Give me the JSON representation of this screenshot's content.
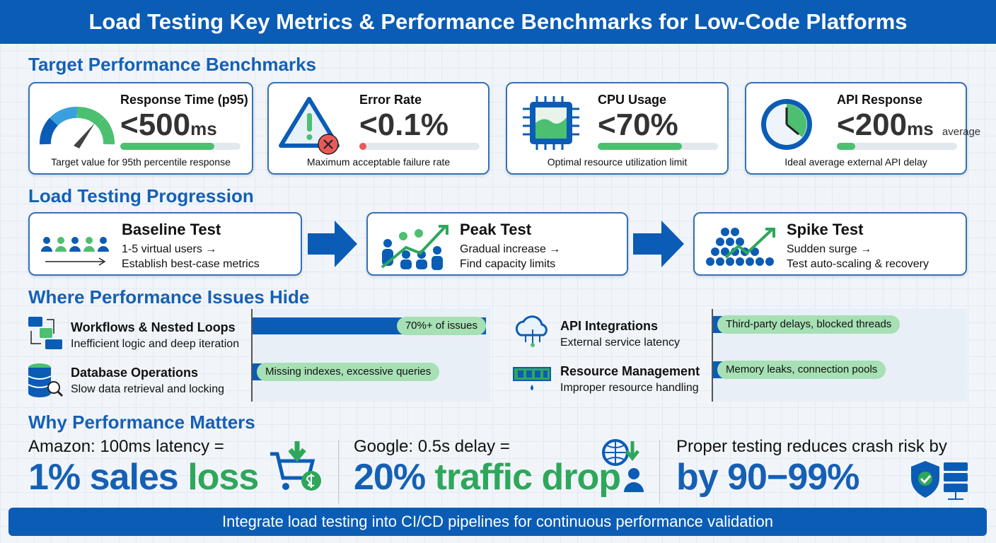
{
  "title": "Load Testing Key Metrics & Performance Benchmarks for Low-Code Platforms",
  "sections": {
    "benchmarks": "Target Performance Benchmarks",
    "progression": "Load Testing Progression",
    "issues": "Where Performance Issues Hide",
    "why": "Why Performance Matters"
  },
  "benchmarks": [
    {
      "label": "Response Time (p95)",
      "value": "<500",
      "unit": "ms",
      "note": "",
      "desc": "Target value for 95th percentile response",
      "fill_pct": 78,
      "icon": "speedometer-icon"
    },
    {
      "label": "Error Rate",
      "value": "<0.1%",
      "unit": "",
      "note": "",
      "desc": "Maximum acceptable failure rate",
      "fill_pct": 2,
      "icon": "warning-icon"
    },
    {
      "label": "CPU Usage",
      "value": "<70%",
      "unit": "",
      "note": "",
      "desc": "Optimal resource utilization limit",
      "fill_pct": 70,
      "icon": "cpu-icon"
    },
    {
      "label": "API Response",
      "value": "<200",
      "unit": "ms",
      "note": "average",
      "desc": "Ideal average external API delay",
      "fill_pct": 15,
      "icon": "clock-icon"
    }
  ],
  "progression": [
    {
      "title": "Baseline Test",
      "line1": "1-5 virtual users →",
      "line2": "Establish best-case metrics"
    },
    {
      "title": "Peak Test",
      "line1": "Gradual increase →",
      "line2": "Find capacity limits"
    },
    {
      "title": "Spike Test",
      "line1": "Sudden surge →",
      "line2": "Test auto-scaling & recovery"
    }
  ],
  "issues": [
    {
      "title": "Workflows & Nested Loops",
      "desc": "Inefficient logic and deep iteration",
      "tag": "70%+ of issues"
    },
    {
      "title": "Database Operations",
      "desc": "Slow data retrieval and locking",
      "tag": "Missing indexes, excessive queries"
    },
    {
      "title": "API Integrations",
      "desc": "External service latency",
      "tag": "Third-party delays, blocked threads"
    },
    {
      "title": "Resource Management",
      "desc": "Improper resource handling",
      "tag": "Memory leaks, connection pools"
    }
  ],
  "stats": [
    {
      "lead": "Amazon: 100ms latency =",
      "big1": "1% sales ",
      "big2": "loss"
    },
    {
      "lead": "Google: 0.5s delay =",
      "big1": "20% ",
      "big2": "traffic drop"
    },
    {
      "lead": "Proper testing reduces crash risk by",
      "big1": "by 90−99%",
      "big2": ""
    }
  ],
  "footer": "Integrate load testing into CI/CD pipelines for continuous performance validation",
  "colors": {
    "primary": "#0b5cb5",
    "accent": "#4cc070",
    "error": "#e85a5a"
  }
}
